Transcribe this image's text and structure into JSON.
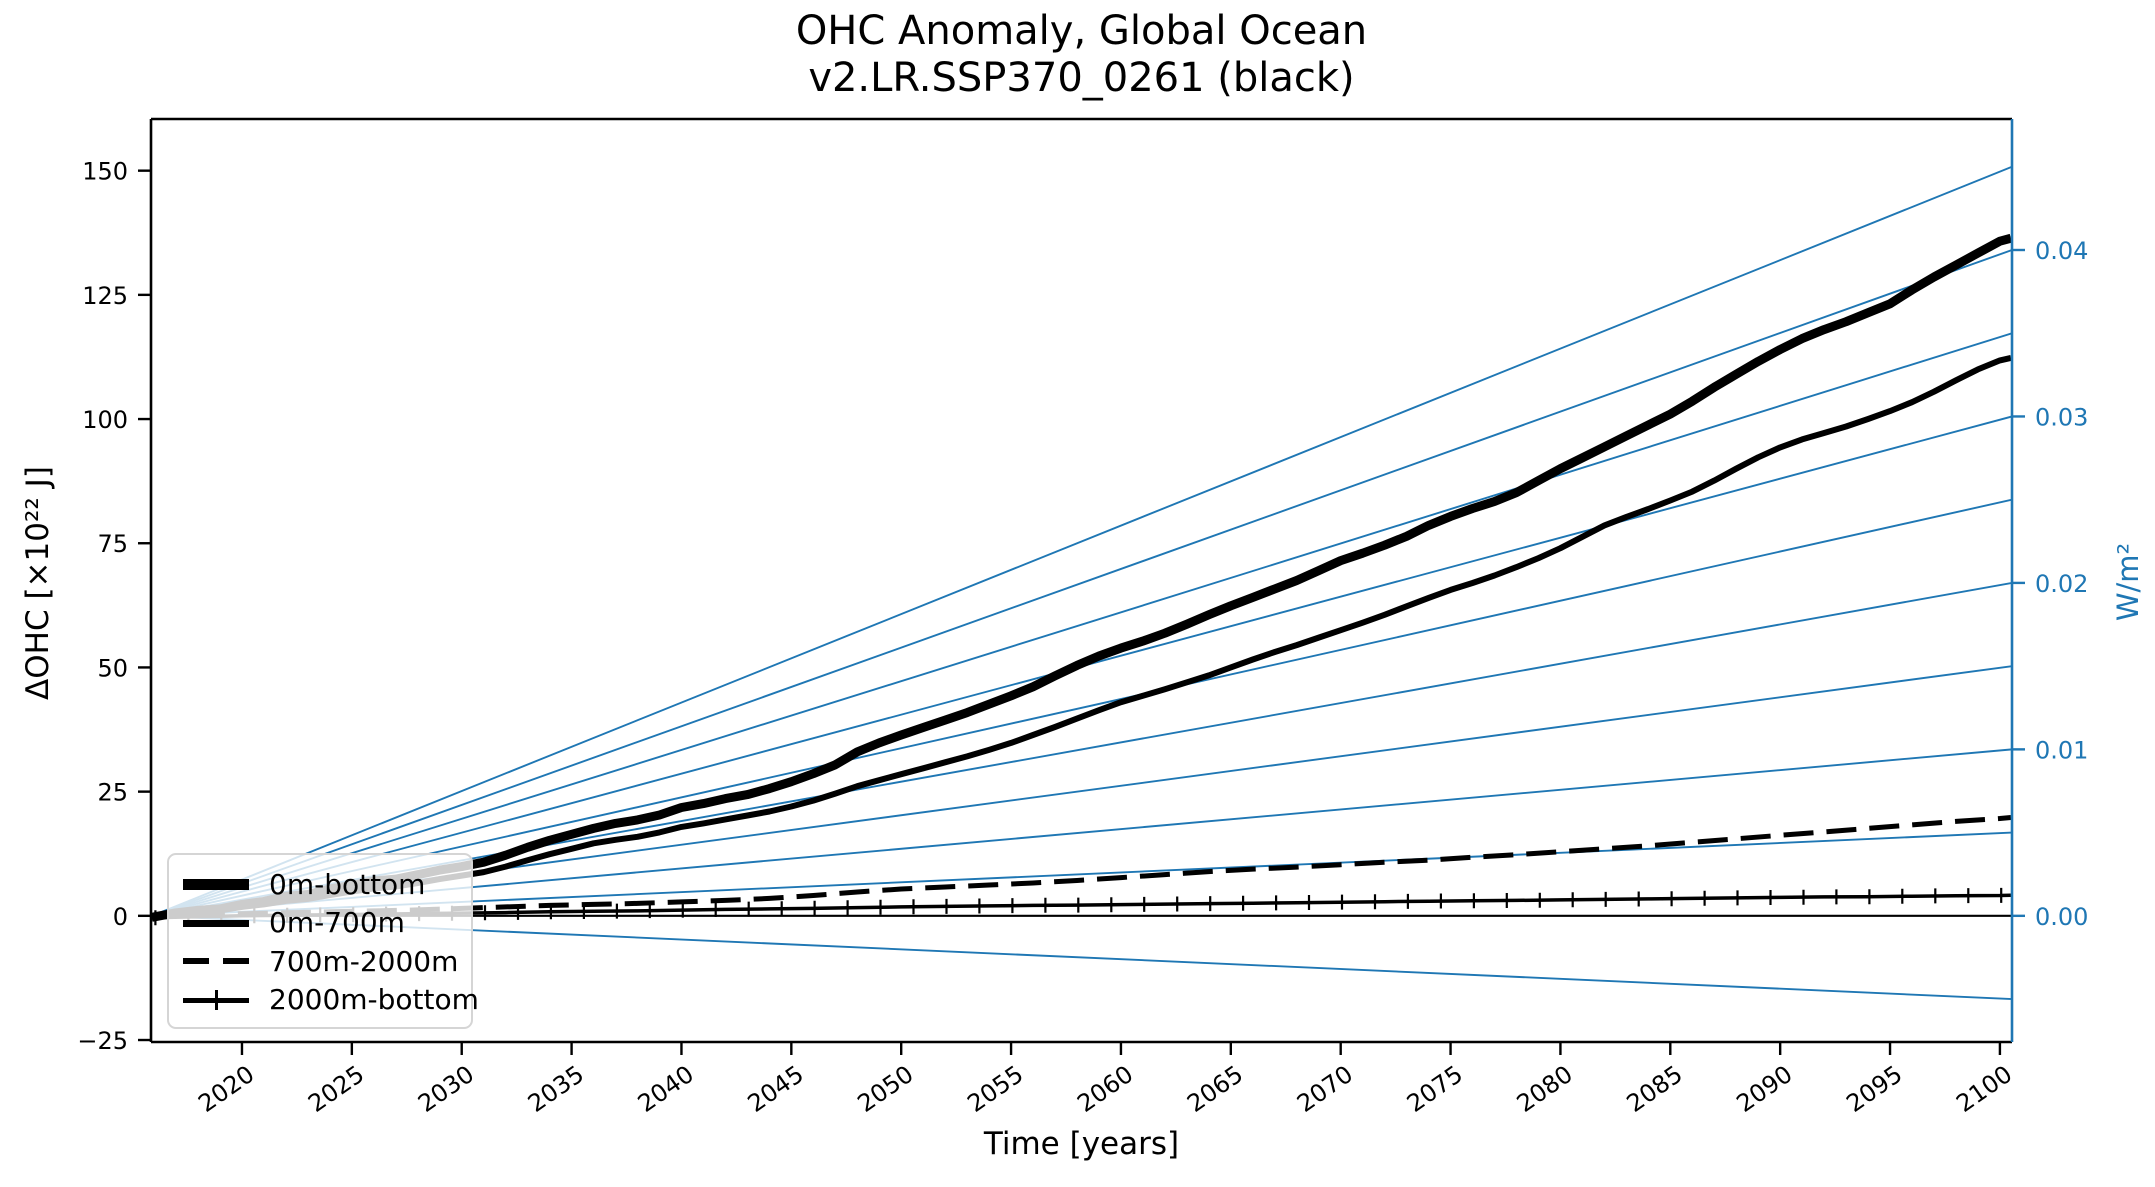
{
  "title": {
    "line1": "OHC Anomaly, Global Ocean",
    "line2": "v2.LR.SSP370_0261 (black)"
  },
  "axes": {
    "x_label": "Time [years]",
    "y_left_label": "ΔOHC [×10²² J]",
    "y_right_label": "W/m²"
  },
  "legend": {
    "items": [
      {
        "label": "0m-bottom",
        "style": "solid-thick"
      },
      {
        "label": "0m-700m",
        "style": "solid-medium"
      },
      {
        "label": "700m-2000m",
        "style": "dashed"
      },
      {
        "label": "2000m-bottom",
        "style": "solid-plus-marker"
      }
    ]
  },
  "colors": {
    "curves": "#000000",
    "reference_blue": "#1f77b4",
    "legend_border": "#d5d5d5",
    "background": "#ffffff"
  },
  "chart_data": {
    "type": "line",
    "title": "OHC Anomaly, Global Ocean",
    "subtitle": "v2.LR.SSP370_0261 (black)",
    "xlabel": "Time [years]",
    "ylabel_left": "ΔOHC [×10²² J]",
    "ylabel_right": "W/m²",
    "grid": false,
    "legend_position": "lower left",
    "xlim": [
      2015.86,
      2100.55
    ],
    "ylim_left": [
      -25.4,
      160.4
    ],
    "ylim_right": [
      -0.00758,
      0.04787
    ],
    "x_ticks": [
      2020,
      2025,
      2030,
      2035,
      2040,
      2045,
      2050,
      2055,
      2060,
      2065,
      2070,
      2075,
      2080,
      2085,
      2090,
      2095,
      2100
    ],
    "y_ticks_left": [
      150,
      125,
      100,
      75,
      50,
      25,
      0,
      -25
    ],
    "y_ticks_right": [
      0.04,
      0.03,
      0.02,
      0.01,
      0.0
    ],
    "zero_line": 0,
    "reference_lines": {
      "comment_units": "W/m2 equivalent-flux straight guide lines from common origin to right axis",
      "origin": [
        2015.9,
        0
      ],
      "values": [
        0.045,
        0.04,
        0.035,
        0.03,
        0.025,
        0.02,
        0.015,
        0.01,
        0.005,
        -0.005
      ]
    },
    "series": [
      {
        "name": "0m-bottom",
        "style": "solid",
        "line_width": 9,
        "points": [
          [
            2015.9,
            -0.3
          ],
          [
            2017,
            0.6
          ],
          [
            2018,
            1.1
          ],
          [
            2019,
            1.4
          ],
          [
            2020,
            2.3
          ],
          [
            2021,
            2.9
          ],
          [
            2022,
            3.9
          ],
          [
            2023,
            4.3
          ],
          [
            2024,
            5.4
          ],
          [
            2025,
            6.1
          ],
          [
            2026,
            7.0
          ],
          [
            2027,
            7.4
          ],
          [
            2028,
            8.3
          ],
          [
            2029,
            9.2
          ],
          [
            2030,
            9.9
          ],
          [
            2031,
            10.8
          ],
          [
            2032,
            12.2
          ],
          [
            2033,
            13.8
          ],
          [
            2034,
            15.2
          ],
          [
            2035,
            16.4
          ],
          [
            2036,
            17.6
          ],
          [
            2037,
            18.6
          ],
          [
            2038,
            19.3
          ],
          [
            2039,
            20.3
          ],
          [
            2040,
            21.8
          ],
          [
            2041,
            22.6
          ],
          [
            2042,
            23.6
          ],
          [
            2043,
            24.4
          ],
          [
            2044,
            25.6
          ],
          [
            2045,
            27.0
          ],
          [
            2046,
            28.6
          ],
          [
            2047,
            30.4
          ],
          [
            2048,
            33.0
          ],
          [
            2049,
            34.8
          ],
          [
            2050,
            36.4
          ],
          [
            2051,
            37.9
          ],
          [
            2052,
            39.4
          ],
          [
            2053,
            40.9
          ],
          [
            2054,
            42.6
          ],
          [
            2055,
            44.3
          ],
          [
            2056,
            46.1
          ],
          [
            2057,
            48.3
          ],
          [
            2058,
            50.4
          ],
          [
            2059,
            52.3
          ],
          [
            2060,
            53.9
          ],
          [
            2061,
            55.3
          ],
          [
            2062,
            56.9
          ],
          [
            2063,
            58.7
          ],
          [
            2064,
            60.6
          ],
          [
            2065,
            62.4
          ],
          [
            2066,
            64.1
          ],
          [
            2067,
            65.8
          ],
          [
            2068,
            67.5
          ],
          [
            2069,
            69.5
          ],
          [
            2070,
            71.5
          ],
          [
            2071,
            73.0
          ],
          [
            2072,
            74.6
          ],
          [
            2073,
            76.4
          ],
          [
            2074,
            78.6
          ],
          [
            2075,
            80.4
          ],
          [
            2076,
            82.0
          ],
          [
            2077,
            83.4
          ],
          [
            2078,
            85.2
          ],
          [
            2079,
            87.6
          ],
          [
            2080,
            90.0
          ],
          [
            2081,
            92.2
          ],
          [
            2082,
            94.4
          ],
          [
            2083,
            96.6
          ],
          [
            2084,
            98.8
          ],
          [
            2085,
            101.0
          ],
          [
            2086,
            103.6
          ],
          [
            2087,
            106.4
          ],
          [
            2088,
            109.0
          ],
          [
            2089,
            111.6
          ],
          [
            2090,
            114.0
          ],
          [
            2091,
            116.2
          ],
          [
            2092,
            118.0
          ],
          [
            2093,
            119.6
          ],
          [
            2094,
            121.4
          ],
          [
            2095,
            123.2
          ],
          [
            2096,
            126.0
          ],
          [
            2097,
            128.6
          ],
          [
            2098,
            131.0
          ],
          [
            2099,
            133.4
          ],
          [
            2100,
            135.8
          ],
          [
            2100.5,
            136.4
          ]
        ]
      },
      {
        "name": "0m-700m",
        "style": "solid",
        "line_width": 6,
        "points": [
          [
            2015.9,
            -0.4
          ],
          [
            2017,
            0.3
          ],
          [
            2018,
            0.8
          ],
          [
            2019,
            1.1
          ],
          [
            2020,
            1.8
          ],
          [
            2021,
            2.3
          ],
          [
            2022,
            3.0
          ],
          [
            2023,
            3.4
          ],
          [
            2024,
            4.2
          ],
          [
            2025,
            4.9
          ],
          [
            2026,
            5.5
          ],
          [
            2027,
            5.9
          ],
          [
            2028,
            6.6
          ],
          [
            2029,
            7.4
          ],
          [
            2030,
            8.1
          ],
          [
            2031,
            8.8
          ],
          [
            2032,
            9.9
          ],
          [
            2033,
            11.2
          ],
          [
            2034,
            12.4
          ],
          [
            2035,
            13.5
          ],
          [
            2036,
            14.6
          ],
          [
            2037,
            15.3
          ],
          [
            2038,
            15.9
          ],
          [
            2039,
            16.8
          ],
          [
            2040,
            17.9
          ],
          [
            2041,
            18.6
          ],
          [
            2042,
            19.4
          ],
          [
            2043,
            20.2
          ],
          [
            2044,
            21.0
          ],
          [
            2045,
            22.0
          ],
          [
            2046,
            23.2
          ],
          [
            2047,
            24.6
          ],
          [
            2048,
            26.1
          ],
          [
            2049,
            27.3
          ],
          [
            2050,
            28.5
          ],
          [
            2051,
            29.7
          ],
          [
            2052,
            30.9
          ],
          [
            2053,
            32.1
          ],
          [
            2054,
            33.4
          ],
          [
            2055,
            34.8
          ],
          [
            2056,
            36.4
          ],
          [
            2057,
            38.0
          ],
          [
            2058,
            39.7
          ],
          [
            2059,
            41.4
          ],
          [
            2060,
            43.0
          ],
          [
            2061,
            44.3
          ],
          [
            2062,
            45.6
          ],
          [
            2063,
            47.0
          ],
          [
            2064,
            48.4
          ],
          [
            2065,
            50.0
          ],
          [
            2066,
            51.6
          ],
          [
            2067,
            53.1
          ],
          [
            2068,
            54.5
          ],
          [
            2069,
            56.0
          ],
          [
            2070,
            57.5
          ],
          [
            2071,
            59.0
          ],
          [
            2072,
            60.6
          ],
          [
            2073,
            62.3
          ],
          [
            2074,
            64.0
          ],
          [
            2075,
            65.6
          ],
          [
            2076,
            67.0
          ],
          [
            2077,
            68.5
          ],
          [
            2078,
            70.2
          ],
          [
            2079,
            72.0
          ],
          [
            2080,
            74.0
          ],
          [
            2081,
            76.3
          ],
          [
            2082,
            78.6
          ],
          [
            2083,
            80.3
          ],
          [
            2084,
            81.9
          ],
          [
            2085,
            83.6
          ],
          [
            2086,
            85.4
          ],
          [
            2087,
            87.6
          ],
          [
            2088,
            90.0
          ],
          [
            2089,
            92.3
          ],
          [
            2090,
            94.3
          ],
          [
            2091,
            95.9
          ],
          [
            2092,
            97.2
          ],
          [
            2093,
            98.5
          ],
          [
            2094,
            100.0
          ],
          [
            2095,
            101.6
          ],
          [
            2096,
            103.4
          ],
          [
            2097,
            105.5
          ],
          [
            2098,
            107.8
          ],
          [
            2099,
            110.0
          ],
          [
            2100,
            111.8
          ],
          [
            2100.5,
            112.3
          ]
        ]
      },
      {
        "name": "700m-2000m",
        "style": "dashed",
        "line_width": 5,
        "points": [
          [
            2015.9,
            -0.1
          ],
          [
            2018,
            0.2
          ],
          [
            2020,
            0.4
          ],
          [
            2022,
            0.6
          ],
          [
            2024,
            0.8
          ],
          [
            2026,
            1.0
          ],
          [
            2028,
            1.2
          ],
          [
            2030,
            1.5
          ],
          [
            2032,
            1.8
          ],
          [
            2034,
            2.1
          ],
          [
            2036,
            2.3
          ],
          [
            2038,
            2.5
          ],
          [
            2040,
            2.8
          ],
          [
            2042,
            3.1
          ],
          [
            2044,
            3.5
          ],
          [
            2046,
            4.1
          ],
          [
            2048,
            4.8
          ],
          [
            2050,
            5.4
          ],
          [
            2052,
            5.8
          ],
          [
            2054,
            6.2
          ],
          [
            2056,
            6.6
          ],
          [
            2058,
            7.1
          ],
          [
            2060,
            7.7
          ],
          [
            2062,
            8.3
          ],
          [
            2064,
            8.9
          ],
          [
            2066,
            9.4
          ],
          [
            2068,
            9.8
          ],
          [
            2070,
            10.3
          ],
          [
            2072,
            10.8
          ],
          [
            2074,
            11.2
          ],
          [
            2076,
            11.8
          ],
          [
            2078,
            12.3
          ],
          [
            2080,
            12.9
          ],
          [
            2082,
            13.5
          ],
          [
            2084,
            14.1
          ],
          [
            2086,
            14.8
          ],
          [
            2088,
            15.5
          ],
          [
            2090,
            16.2
          ],
          [
            2092,
            16.9
          ],
          [
            2094,
            17.6
          ],
          [
            2096,
            18.3
          ],
          [
            2098,
            19.0
          ],
          [
            2100,
            19.6
          ],
          [
            2100.5,
            19.8
          ]
        ]
      },
      {
        "name": "2000m-bottom",
        "style": "solid-plus-marker",
        "line_width": 3.5,
        "points": [
          [
            2015.9,
            -0.4
          ],
          [
            2018,
            -0.2
          ],
          [
            2020,
            0.0
          ],
          [
            2022,
            0.1
          ],
          [
            2024,
            0.2
          ],
          [
            2026,
            0.3
          ],
          [
            2028,
            0.45
          ],
          [
            2030,
            0.55
          ],
          [
            2032,
            0.65
          ],
          [
            2034,
            0.8
          ],
          [
            2036,
            0.9
          ],
          [
            2038,
            1.0
          ],
          [
            2040,
            1.15
          ],
          [
            2042,
            1.3
          ],
          [
            2044,
            1.4
          ],
          [
            2046,
            1.5
          ],
          [
            2048,
            1.65
          ],
          [
            2050,
            1.8
          ],
          [
            2052,
            1.9
          ],
          [
            2054,
            2.0
          ],
          [
            2056,
            2.1
          ],
          [
            2058,
            2.15
          ],
          [
            2060,
            2.25
          ],
          [
            2062,
            2.35
          ],
          [
            2064,
            2.45
          ],
          [
            2066,
            2.55
          ],
          [
            2068,
            2.65
          ],
          [
            2070,
            2.75
          ],
          [
            2072,
            2.85
          ],
          [
            2074,
            2.95
          ],
          [
            2076,
            3.05
          ],
          [
            2078,
            3.1
          ],
          [
            2080,
            3.2
          ],
          [
            2082,
            3.3
          ],
          [
            2084,
            3.4
          ],
          [
            2086,
            3.5
          ],
          [
            2088,
            3.6
          ],
          [
            2090,
            3.7
          ],
          [
            2092,
            3.8
          ],
          [
            2094,
            3.85
          ],
          [
            2096,
            3.95
          ],
          [
            2098,
            4.05
          ],
          [
            2100,
            4.1
          ],
          [
            2100.5,
            4.15
          ]
        ]
      }
    ]
  }
}
